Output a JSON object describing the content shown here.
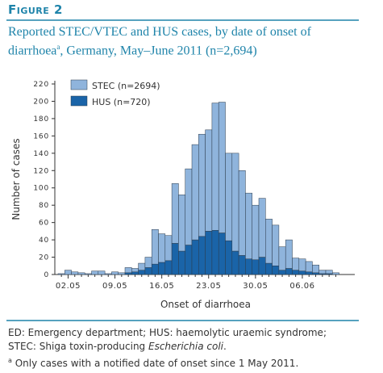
{
  "figure_label": "Figure 2",
  "chart_data": {
    "type": "bar",
    "stacked": true,
    "title": "Reported STEC/VTEC and HUS cases, by date of onset of diarrhoea",
    "title_superscript": "a",
    "title_end": ", Germany, May–June 2011 (n=2,694)",
    "x_label": "Onset of diarrhoea",
    "y_label": "Number of cases",
    "categories": [
      null,
      "02.05",
      null,
      null,
      null,
      null,
      null,
      null,
      "09.05",
      null,
      null,
      null,
      null,
      null,
      null,
      "16.05",
      null,
      null,
      null,
      null,
      null,
      null,
      "23.05",
      null,
      null,
      null,
      null,
      null,
      null,
      "30.05",
      null,
      null,
      null,
      null,
      null,
      null,
      "06.06",
      null,
      null,
      null,
      null,
      null
    ],
    "series": [
      {
        "name": "HUS (n=720)",
        "color": "#1a64a8",
        "values": [
          0,
          0,
          0,
          0,
          0,
          0,
          0,
          0,
          0,
          0,
          2,
          3,
          5,
          8,
          12,
          14,
          16,
          36,
          27,
          34,
          40,
          44,
          50,
          51,
          48,
          39,
          27,
          22,
          18,
          17,
          20,
          13,
          10,
          5,
          7,
          5,
          4,
          3,
          2,
          1,
          1,
          0
        ]
      },
      {
        "name": "STEC (n=2694)",
        "color": "#8fb4dc",
        "values": [
          1,
          5,
          3,
          2,
          1,
          4,
          4,
          1,
          3,
          2,
          6,
          4,
          8,
          12,
          40,
          33,
          29,
          69,
          65,
          88,
          110,
          118,
          117,
          147,
          151,
          101,
          113,
          98,
          76,
          63,
          68,
          51,
          47,
          27,
          33,
          14,
          14,
          12,
          9,
          4,
          4,
          2
        ]
      }
    ],
    "legend": "top-left",
    "ylim": [
      0,
      220
    ],
    "yticks": [
      0,
      20,
      40,
      60,
      80,
      100,
      120,
      140,
      160,
      180,
      200,
      220
    ]
  },
  "notes": {
    "line1": "ED: Emergency department; HUS: haemolytic uraemic syndrome;",
    "line2_start": "STEC: Shiga toxin-producing ",
    "line2_italic": "Escherichia coli",
    "line2_end": ".",
    "footnote_marker": "a",
    "footnote": "Only cases with a notified date of onset since 1 May 2011."
  }
}
